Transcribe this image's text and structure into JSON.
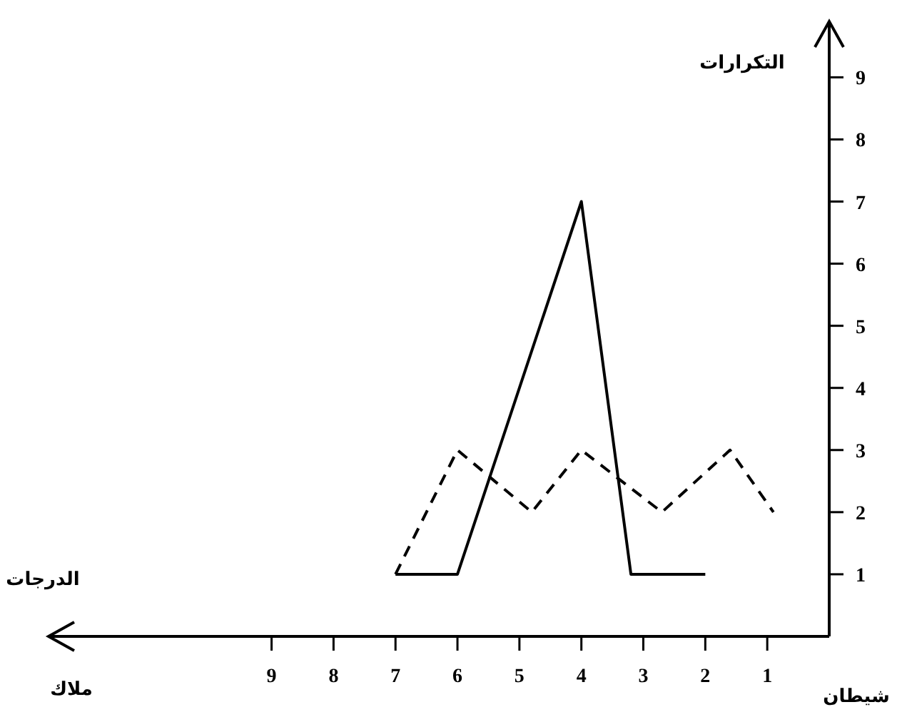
{
  "chart_data": {
    "type": "line",
    "xlabel": "الدرجات",
    "ylabel": "التكرارات",
    "annotations": [
      "ملاك",
      "شيطان"
    ],
    "xlim": [
      12.6,
      0
    ],
    "xticks": [
      1,
      2,
      3,
      4,
      5,
      6,
      7,
      8,
      9
    ],
    "ylim": [
      0,
      9.9
    ],
    "yticks": [
      1,
      2,
      3,
      4,
      5,
      6,
      7,
      8,
      9
    ],
    "series": [
      {
        "color": "#000000",
        "line_style": "solid",
        "x": [
          7,
          6,
          4,
          3.2,
          2
        ],
        "values": [
          1,
          1,
          7,
          1,
          1
        ]
      },
      {
        "color": "#000000",
        "line_style": "dashed",
        "x": [
          7,
          6,
          4.8,
          4,
          2.7,
          1.6,
          0.9
        ],
        "values": [
          1,
          3,
          2,
          3,
          2,
          3,
          2
        ]
      }
    ],
    "grid": false
  }
}
